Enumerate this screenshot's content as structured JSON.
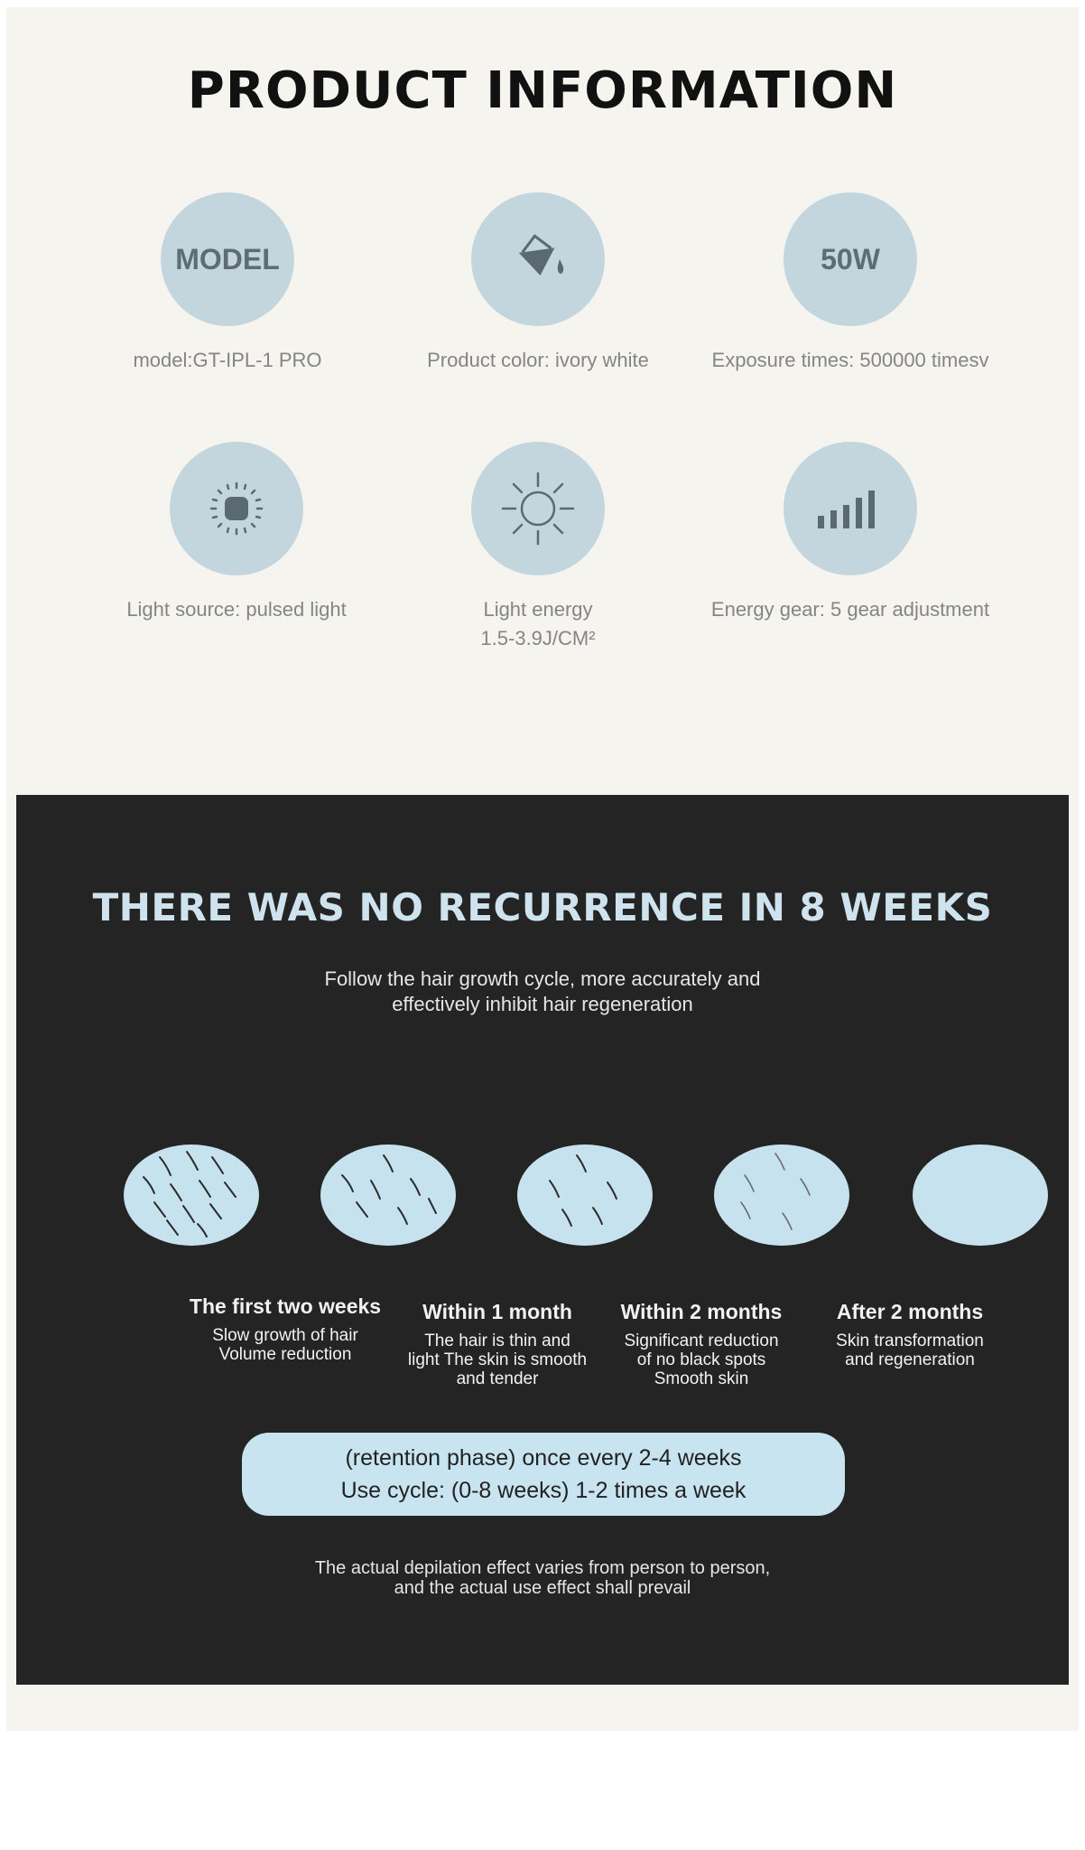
{
  "product_info": {
    "title": "PRODUCT INFORMATION",
    "features": [
      {
        "icon_text": "MODEL",
        "icon": "model-text-icon",
        "label": "model:GT-IPL-1 PRO"
      },
      {
        "icon": "paint-bucket-icon",
        "label": "Product color: ivory white"
      },
      {
        "icon_text": "50W",
        "icon": "power-text-icon",
        "label": "Exposure times: 500000 timesv"
      },
      {
        "icon": "pulsed-light-icon",
        "label": "Light source: pulsed light"
      },
      {
        "icon": "sun-icon",
        "label": "Light energy",
        "label2": "1.5-3.9J/CM²"
      },
      {
        "icon": "signal-bars-icon",
        "label": "Energy gear: 5 gear adjustment"
      }
    ]
  },
  "recurrence": {
    "title": "THERE WAS NO RECURRENCE IN 8 WEEKS",
    "subtitle_line1": "Follow the hair growth cycle, more accurately and",
    "subtitle_line2": "effectively inhibit hair regeneration",
    "stages": [
      {
        "title": "The first two weeks",
        "desc": [
          "Slow growth of hair",
          "Volume reduction"
        ]
      },
      {
        "title": "Within 1 month",
        "desc": [
          "The hair is thin and",
          "light The skin is smooth",
          "and tender"
        ]
      },
      {
        "title": "Within 2 months",
        "desc": [
          "Significant reduction",
          "of no black spots",
          "Smooth skin"
        ]
      },
      {
        "title": "After 2 months",
        "desc": [
          "Skin transformation",
          "and regeneration"
        ]
      }
    ],
    "pill_line1": "(retention phase) once every 2-4 weeks",
    "pill_line2": "Use cycle: (0-8 weeks) 1-2 times a week",
    "note_line1": "The actual depilation effect varies from person to person,",
    "note_line2": "and the actual use effect shall prevail"
  },
  "colors": {
    "circle": "#c4d6dd",
    "dark_panel": "#242424",
    "accent_text": "#cfe3ee",
    "oval": "#c6e2ee"
  }
}
